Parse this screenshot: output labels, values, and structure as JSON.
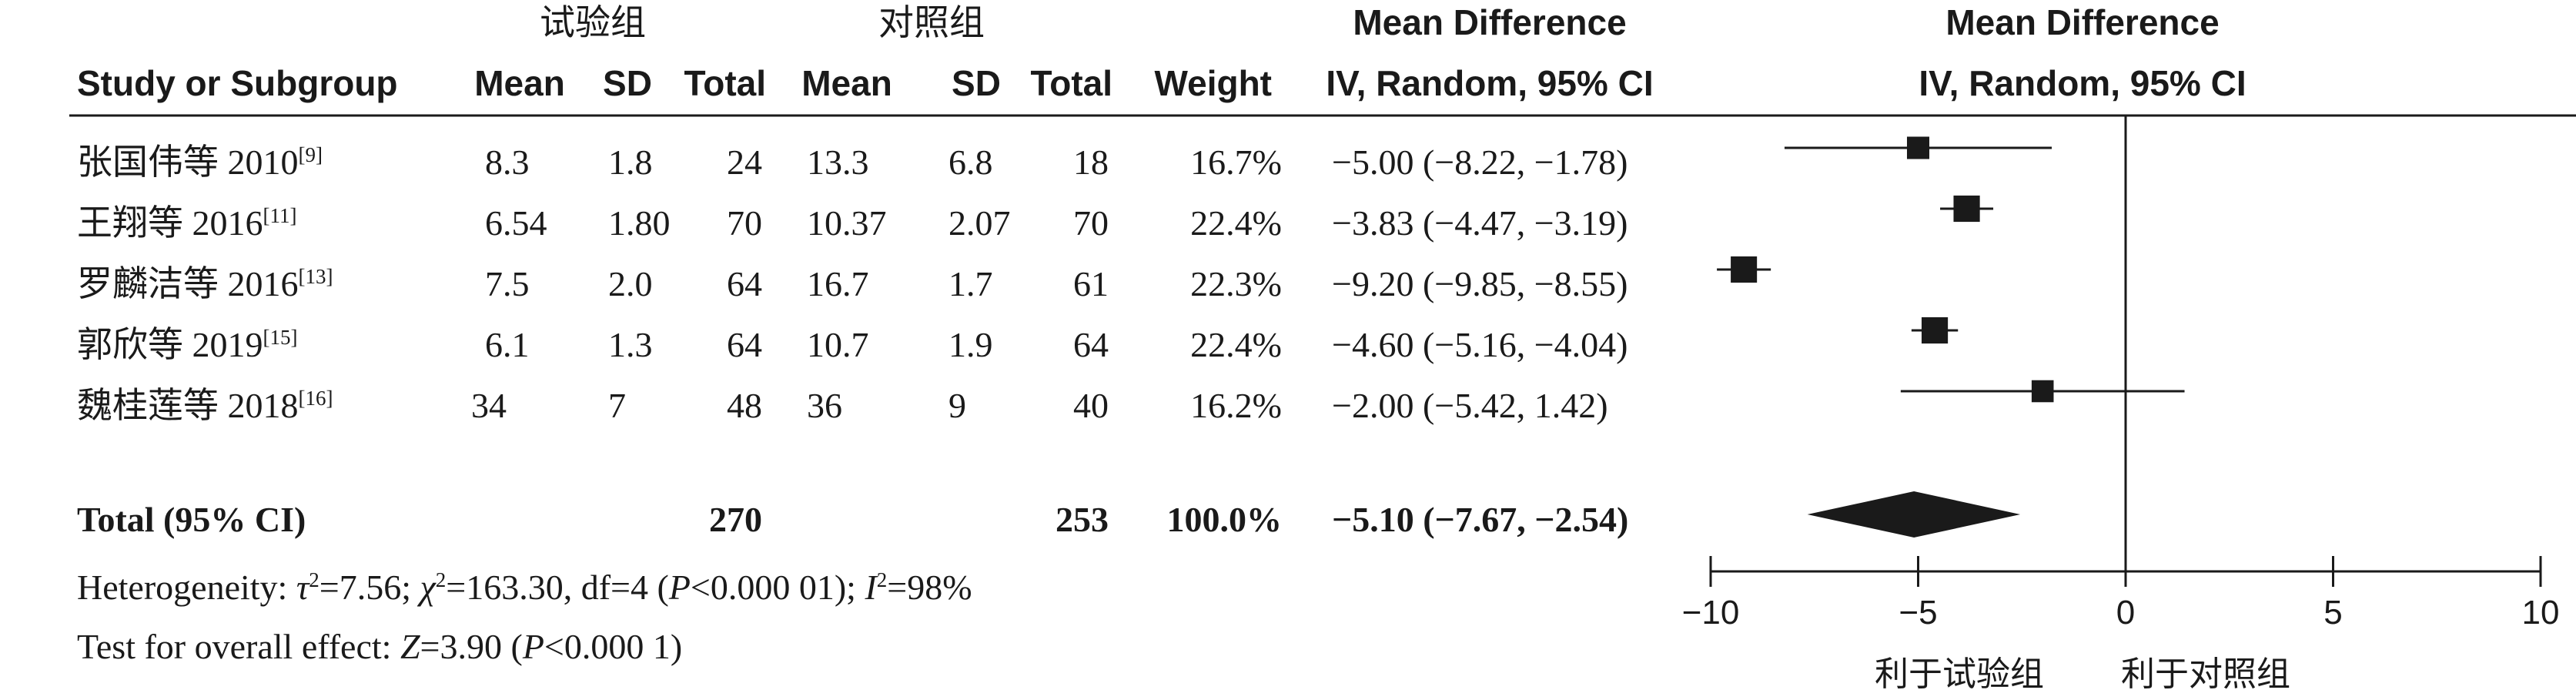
{
  "headers": {
    "group_exp": "试验组",
    "group_ctrl": "对照组",
    "md_title_left": "Mean Difference",
    "md_sub_left": "IV, Random, 95% CI",
    "md_title_right": "Mean Difference",
    "md_sub_right": "IV, Random, 95% CI",
    "study": "Study or Subgroup",
    "mean_e": "Mean",
    "sd_e": "SD",
    "total_e": "Total",
    "mean_c": "Mean",
    "sd_c": "SD",
    "total_c": "Total",
    "weight": "Weight"
  },
  "studies": [
    {
      "name": "张国伟等 2010",
      "ref": "[9]",
      "mean_e": "8.3",
      "sd_e": "1.8",
      "total_e": "24",
      "mean_c": "13.3",
      "sd_c": "6.8",
      "total_c": "18",
      "weight": "16.7%",
      "ci_text": "−5.00 (−8.22, −1.78)"
    },
    {
      "name": "王翔等 2016",
      "ref": "[11]",
      "mean_e": "6.54",
      "sd_e": "1.80",
      "total_e": "70",
      "mean_c": "10.37",
      "sd_c": "2.07",
      "total_c": "70",
      "weight": "22.4%",
      "ci_text": "−3.83 (−4.47, −3.19)"
    },
    {
      "name": "罗麟洁等 2016",
      "ref": "[13]",
      "mean_e": "7.5",
      "sd_e": "2.0",
      "total_e": "64",
      "mean_c": "16.7",
      "sd_c": "1.7",
      "total_c": "61",
      "weight": "22.3%",
      "ci_text": "−9.20 (−9.85, −8.55)"
    },
    {
      "name": "郭欣等 2019",
      "ref": "[15]",
      "mean_e": "6.1",
      "sd_e": "1.3",
      "total_e": "64",
      "mean_c": "10.7",
      "sd_c": "1.9",
      "total_c": "64",
      "weight": "22.4%",
      "ci_text": "−4.60 (−5.16, −4.04)"
    },
    {
      "name": "魏桂莲等 2018",
      "ref": "[16]",
      "mean_e": "34",
      "sd_e": "7",
      "total_e": "48",
      "mean_c": "36",
      "sd_c": "9",
      "total_c": "40",
      "weight": "16.2%",
      "ci_text": "−2.00 (−5.42, 1.42)"
    }
  ],
  "total": {
    "label": "Total (95% CI)",
    "total_e": "270",
    "total_c": "253",
    "weight": "100.0%",
    "ci_text": "−5.10 (−7.67, −2.54)"
  },
  "heterogeneity": {
    "p1": "Heterogeneity: ",
    "tau": "τ",
    "p2": "=7.56; ",
    "chi": "χ",
    "p3": "=163.30, df=4 (",
    "P": "P",
    "p4": "<0.000 01); ",
    "I": "I",
    "p5": "=98%",
    "sup": "2"
  },
  "overall_effect": {
    "p1": "Test for overall effect: ",
    "Z": "Z",
    "p2": "=3.90 (",
    "P": "P",
    "p3": "<0.000 1)"
  },
  "axis": {
    "favors_left": "利于试验组",
    "favors_right": "利于对照组"
  },
  "chart_data": {
    "type": "forest",
    "x_range": [
      -10,
      10
    ],
    "x_ticks": [
      -10,
      -5,
      0,
      5,
      10
    ],
    "x_tick_labels": [
      "−10",
      "−5",
      "0",
      "5",
      "10"
    ],
    "reference_line": 0,
    "effect_measure": "Mean Difference, IV, Random, 95% CI",
    "studies": [
      {
        "name": "张国伟等 2010",
        "md": -5.0,
        "lo": -8.22,
        "hi": -1.78,
        "weight": 16.7
      },
      {
        "name": "王翔等 2016",
        "md": -3.83,
        "lo": -4.47,
        "hi": -3.19,
        "weight": 22.4
      },
      {
        "name": "罗麟洁等 2016",
        "md": -9.2,
        "lo": -9.85,
        "hi": -8.55,
        "weight": 22.3
      },
      {
        "name": "郭欣等 2019",
        "md": -4.6,
        "lo": -5.16,
        "hi": -4.04,
        "weight": 22.4
      },
      {
        "name": "魏桂莲等 2018",
        "md": -2.0,
        "lo": -5.42,
        "hi": 1.42,
        "weight": 16.2
      }
    ],
    "pooled": {
      "name": "Total (95% CI)",
      "md": -5.1,
      "lo": -7.67,
      "hi": -2.54,
      "weight": 100.0
    },
    "colors": {
      "marker": "#1a1a1a",
      "line": "#1a1a1a"
    }
  }
}
